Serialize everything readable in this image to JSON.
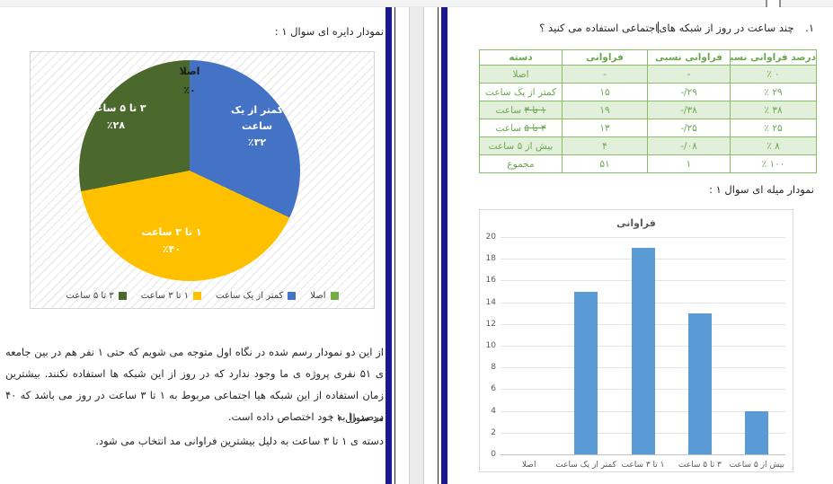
{
  "left_page": {
    "section_title": "نمودار دایره ای سوال ۱ :",
    "analysis_paragraph": "از این دو نمودار رسم شده در نگاه اول متوجه می شویم که حتی ۱ نفر هم در بین جامعه ی ۵۱ نفری پروژه ی ما وجود ندارد که در روز از این شبکه ها استفاده نکنند. بیشترین زمان استفاده از این شبکه هیا اجتماعی مربوط به ۱ تا ۳ ساعت در روز می باشد که ۴۰ درصد را به خود اختصاص داده است.",
    "mode_title": "مد سوال ۱ :",
    "mode_text": "دسته ی ۱ تا ۳ ساعت به دلیل بیشترین فراوانی مد انتخاب می شود."
  },
  "right_page": {
    "question_number": "۱.",
    "question_before_cursor": "چند ساعت در روز از شبکه های",
    "question_after_cursor": "اجتماعی استفاده می کنید ؟",
    "bar_section_title": "نمودار میله ای سوال ۱ :",
    "table": {
      "headers": [
        "دسته",
        "فراوانی",
        "فراوانی نسبی",
        "درصد فراوانی نسبی"
      ],
      "rows": [
        {
          "cat": "اصلا",
          "freq": "-",
          "rel": "-",
          "pct": "٪ ۰"
        },
        {
          "cat": "کمتر از یک ساعت",
          "freq": "۱۵",
          "rel": "-/۲۹",
          "pct": "٪ ۲۹"
        },
        {
          "cat_strike": "۱ تا ۳",
          "cat_rest": " ساعت",
          "freq": "۱۹",
          "rel": "-/۳۸",
          "pct": "٪ ۳۸"
        },
        {
          "cat_strike": "۳ تا ۵",
          "cat_rest": " ساعت",
          "freq": "۱۳",
          "rel": "-/۲۵",
          "pct": "٪ ۲۵"
        },
        {
          "cat": "بیش از ۵ ساعت",
          "freq": "۴",
          "rel": "-/۰۸",
          "pct": "٪ ۸"
        },
        {
          "cat": "مجموع",
          "freq": "۵۱",
          "rel": "۱",
          "pct": "٪ ۱۰۰"
        }
      ]
    }
  },
  "theme": {
    "table_green": "#6AA84F",
    "table_border": "#86BE62",
    "table_row_shade": "#E2EFDA",
    "page_border_navy": "#1A1A8E",
    "bar_blue": "#5B9BD5",
    "pie_blue": "#4472C4",
    "pie_yellow": "#FFC000",
    "pie_dark_green": "#4B692D",
    "pie_light_green": "#70AD47"
  },
  "chart_data": [
    {
      "type": "pie",
      "title": "نمودار دایره ای سوال ۱",
      "categories": [
        "اصلا",
        "کمتر از یک ساعت",
        "۱ تا ۳ ساعت",
        "۳ تا ۵ ساعت"
      ],
      "values_percent": [
        0,
        32,
        40,
        28
      ],
      "colors": [
        "#70AD47",
        "#4472C4",
        "#FFC000",
        "#4B692D"
      ],
      "labels": [
        {
          "lines": [
            "اصلا",
            "٪۰"
          ]
        },
        {
          "lines": [
            "کمتر از یک",
            "ساعت",
            "٪۳۲"
          ]
        },
        {
          "lines": [
            "۱ تا ۳ ساعت",
            "٪۴۰"
          ]
        },
        {
          "lines": [
            "۳ تا ۵ ساعت",
            "٪۲۸"
          ]
        }
      ],
      "legend_position": "bottom"
    },
    {
      "type": "bar",
      "title": "فراوانی",
      "categories": [
        "اصلا",
        "کمتر از یک ساعت",
        "۱ تا ۳ ساعت",
        "۳ تا ۵ ساعت",
        "بیش از ۵ ساعت"
      ],
      "values": [
        0,
        15,
        19,
        13,
        4
      ],
      "ylim": [
        0,
        20
      ],
      "ytick_step": 2,
      "bar_color": "#5B9BD5",
      "grid": true,
      "xlabel": "",
      "ylabel": ""
    }
  ]
}
